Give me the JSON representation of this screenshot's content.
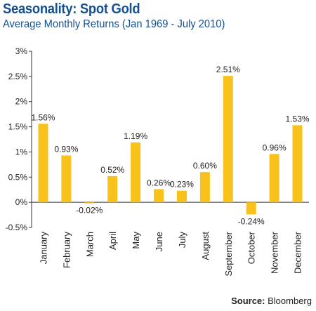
{
  "header": {
    "title": "Seasonality: Spot Gold",
    "subtitle": "Average Monthly Returns (Jan 1969 - July 2010)"
  },
  "source": {
    "label": "Source:",
    "name": "Bloomberg"
  },
  "colors": {
    "bar": "#f9c21b",
    "title": "#15508f",
    "axis": "#333333"
  },
  "chart_data": {
    "type": "bar",
    "title": "Seasonality: Spot Gold",
    "subtitle": "Average Monthly Returns (Jan 1969 - July 2010)",
    "xlabel": "",
    "ylabel": "",
    "categories": [
      "January",
      "February",
      "March",
      "April",
      "May",
      "June",
      "July",
      "August",
      "September",
      "October",
      "November",
      "December"
    ],
    "values": [
      1.56,
      0.93,
      -0.02,
      0.52,
      1.19,
      0.26,
      0.23,
      0.6,
      2.51,
      -0.24,
      0.96,
      1.53
    ],
    "data_labels": [
      "1.56%",
      "0.93%",
      "-0.02%",
      "0.52%",
      "1.19%",
      "0.26%",
      "0.23%",
      "0.60%",
      "2.51%",
      "-0.24%",
      "0.96%",
      "1.53%"
    ],
    "ylim": [
      -0.5,
      3
    ],
    "yticks": [
      -0.5,
      0,
      0.5,
      1,
      1.5,
      2,
      2.5,
      3
    ],
    "ytick_labels": [
      "-0.5%",
      "0%",
      "0.5%",
      "1%",
      "1.5%",
      "2%",
      "2.5%",
      "3%"
    ],
    "grid": false,
    "legend": "none"
  }
}
